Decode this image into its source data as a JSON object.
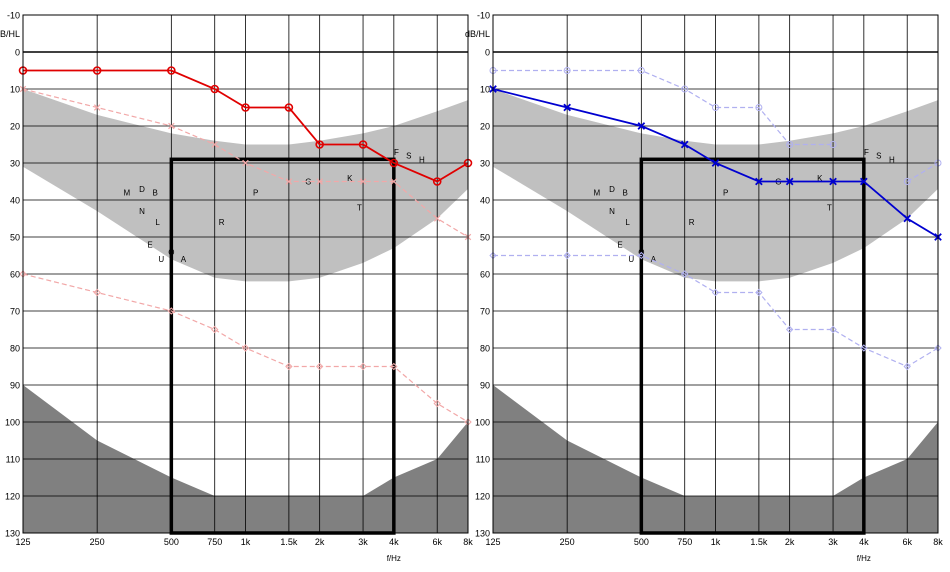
{
  "chart_data": [
    {
      "type": "line",
      "ylabel": "dB/HL",
      "xlabel": "f/Hz",
      "ylim": [
        -10,
        130
      ],
      "y_inverted": true,
      "x_scale": "log",
      "x_ticks": [
        125,
        250,
        500,
        750,
        1000,
        1500,
        2000,
        3000,
        4000,
        6000,
        8000
      ],
      "x_tick_labels": [
        "125",
        "250",
        "500",
        "750",
        "1k",
        "1.5k",
        "2k",
        "3k",
        "4k",
        "6k",
        "8k"
      ],
      "y_ticks": [
        -10,
        0,
        10,
        20,
        30,
        40,
        50,
        60,
        70,
        80,
        90,
        100,
        110,
        120,
        130
      ],
      "y_tick_labels": [
        "-10",
        "0",
        "10",
        "20",
        "30",
        "40",
        "50",
        "60",
        "70",
        "80",
        "90",
        "100",
        "110",
        "120",
        "130"
      ],
      "grid": true,
      "series": [
        {
          "role": "primary",
          "marker": "circle",
          "color": "#e00000",
          "x": [
            125,
            250,
            500,
            750,
            1000,
            1500,
            2000,
            3000,
            4000,
            6000,
            8000
          ],
          "y": [
            5,
            5,
            5,
            10,
            15,
            15,
            25,
            25,
            30,
            35,
            30
          ]
        },
        {
          "role": "faint",
          "marker": "x",
          "color": "#f2a8a8",
          "x": [
            125,
            250,
            500,
            750,
            1000,
            1500,
            2000,
            3000,
            4000,
            6000,
            8000
          ],
          "y": [
            10,
            15,
            20,
            25,
            30,
            35,
            35,
            35,
            35,
            45,
            50
          ]
        },
        {
          "role": "faint",
          "marker": "diamond",
          "color": "#f2a8a8",
          "x": [
            125,
            250,
            500,
            750,
            1000,
            1500,
            2000,
            3000,
            4000,
            6000,
            8000
          ],
          "y": [
            60,
            65,
            70,
            75,
            80,
            85,
            85,
            85,
            85,
            95,
            100
          ]
        }
      ],
      "speech_banana_upper": [
        [
          125,
          10
        ],
        [
          250,
          17
        ],
        [
          500,
          22
        ],
        [
          750,
          24
        ],
        [
          1000,
          25
        ],
        [
          1500,
          25
        ],
        [
          2000,
          24
        ],
        [
          3000,
          22
        ],
        [
          4000,
          20
        ],
        [
          6000,
          16
        ],
        [
          8000,
          13
        ]
      ],
      "speech_banana_lower": [
        [
          125,
          31
        ],
        [
          250,
          43
        ],
        [
          500,
          56
        ],
        [
          750,
          61
        ],
        [
          1000,
          62
        ],
        [
          1500,
          62
        ],
        [
          2000,
          61
        ],
        [
          3000,
          57
        ],
        [
          4000,
          53
        ],
        [
          6000,
          45
        ],
        [
          8000,
          37
        ]
      ],
      "bottom_region": [
        [
          125,
          90
        ],
        [
          250,
          105
        ],
        [
          500,
          115
        ],
        [
          750,
          120
        ],
        [
          1000,
          120
        ],
        [
          1500,
          120
        ],
        [
          2000,
          120
        ],
        [
          3000,
          120
        ],
        [
          4000,
          115
        ],
        [
          6000,
          110
        ],
        [
          8000,
          100
        ]
      ],
      "highlight_box": {
        "x": [
          500,
          4000
        ],
        "y": [
          29,
          130
        ]
      },
      "speech_letters": [
        {
          "label": "M",
          "x": 330,
          "y": 38
        },
        {
          "label": "D",
          "x": 380,
          "y": 37
        },
        {
          "label": "B",
          "x": 430,
          "y": 38
        },
        {
          "label": "N",
          "x": 380,
          "y": 43
        },
        {
          "label": "L",
          "x": 440,
          "y": 46
        },
        {
          "label": "E",
          "x": 410,
          "y": 52
        },
        {
          "label": "U",
          "x": 455,
          "y": 56
        },
        {
          "label": "O",
          "x": 500,
          "y": 54
        },
        {
          "label": "A",
          "x": 560,
          "y": 56
        },
        {
          "label": "R",
          "x": 800,
          "y": 46
        },
        {
          "label": "P",
          "x": 1100,
          "y": 38
        },
        {
          "label": "G",
          "x": 1800,
          "y": 35
        },
        {
          "label": "K",
          "x": 2650,
          "y": 34
        },
        {
          "label": "T",
          "x": 2900,
          "y": 42
        },
        {
          "label": "F",
          "x": 4100,
          "y": 27
        },
        {
          "label": "S",
          "x": 4600,
          "y": 28
        },
        {
          "label": "H",
          "x": 5200,
          "y": 29
        }
      ]
    },
    {
      "type": "line",
      "ylabel": "dB/HL",
      "xlabel": "f/Hz",
      "ylim": [
        -10,
        130
      ],
      "y_inverted": true,
      "x_scale": "log",
      "x_ticks": [
        125,
        250,
        500,
        750,
        1000,
        1500,
        2000,
        3000,
        4000,
        6000,
        8000
      ],
      "x_tick_labels": [
        "125",
        "250",
        "500",
        "750",
        "1k",
        "1.5k",
        "2k",
        "3k",
        "4k",
        "6k",
        "8k"
      ],
      "y_ticks": [
        -10,
        0,
        10,
        20,
        30,
        40,
        50,
        60,
        70,
        80,
        90,
        100,
        110,
        120,
        130
      ],
      "y_tick_labels": [
        "-10",
        "0",
        "10",
        "20",
        "30",
        "40",
        "50",
        "60",
        "70",
        "80",
        "90",
        "100",
        "110",
        "120",
        "130"
      ],
      "grid": true,
      "series": [
        {
          "role": "primary",
          "marker": "x",
          "color": "#0000d0",
          "x": [
            125,
            250,
            500,
            750,
            1000,
            1500,
            2000,
            3000,
            4000,
            6000,
            8000
          ],
          "y": [
            10,
            15,
            20,
            25,
            30,
            35,
            35,
            35,
            35,
            45,
            50
          ]
        },
        {
          "role": "faint",
          "marker": "circle",
          "color": "#b0b0f0",
          "x": [
            125,
            250,
            500,
            750,
            1000,
            1500,
            2000,
            3000
          ],
          "y": [
            5,
            5,
            5,
            10,
            15,
            15,
            25,
            25
          ]
        },
        {
          "role": "faint",
          "marker": "diamond",
          "color": "#b0b0f0",
          "x": [
            125,
            250,
            500,
            750,
            1000,
            1500,
            2000,
            3000,
            4000,
            6000,
            8000
          ],
          "y": [
            55,
            55,
            55,
            60,
            65,
            65,
            75,
            75,
            80,
            85,
            80
          ]
        },
        {
          "role": "faint",
          "marker": "circle",
          "color": "#b0b0f0",
          "x": [
            6000,
            8000
          ],
          "y": [
            35,
            30
          ]
        }
      ],
      "speech_banana_upper": [
        [
          125,
          10
        ],
        [
          250,
          17
        ],
        [
          500,
          22
        ],
        [
          750,
          24
        ],
        [
          1000,
          25
        ],
        [
          1500,
          25
        ],
        [
          2000,
          24
        ],
        [
          3000,
          22
        ],
        [
          4000,
          20
        ],
        [
          6000,
          16
        ],
        [
          8000,
          13
        ]
      ],
      "speech_banana_lower": [
        [
          125,
          31
        ],
        [
          250,
          43
        ],
        [
          500,
          56
        ],
        [
          750,
          61
        ],
        [
          1000,
          62
        ],
        [
          1500,
          62
        ],
        [
          2000,
          61
        ],
        [
          3000,
          57
        ],
        [
          4000,
          53
        ],
        [
          6000,
          45
        ],
        [
          8000,
          37
        ]
      ],
      "bottom_region": [
        [
          125,
          90
        ],
        [
          250,
          105
        ],
        [
          500,
          115
        ],
        [
          750,
          120
        ],
        [
          1000,
          120
        ],
        [
          1500,
          120
        ],
        [
          2000,
          120
        ],
        [
          3000,
          120
        ],
        [
          4000,
          115
        ],
        [
          6000,
          110
        ],
        [
          8000,
          100
        ]
      ],
      "highlight_box": {
        "x": [
          500,
          4000
        ],
        "y": [
          29,
          130
        ]
      },
      "speech_letters": [
        {
          "label": "M",
          "x": 330,
          "y": 38
        },
        {
          "label": "D",
          "x": 380,
          "y": 37
        },
        {
          "label": "B",
          "x": 430,
          "y": 38
        },
        {
          "label": "N",
          "x": 380,
          "y": 43
        },
        {
          "label": "L",
          "x": 440,
          "y": 46
        },
        {
          "label": "E",
          "x": 410,
          "y": 52
        },
        {
          "label": "U",
          "x": 455,
          "y": 56
        },
        {
          "label": "O",
          "x": 500,
          "y": 54
        },
        {
          "label": "A",
          "x": 560,
          "y": 56
        },
        {
          "label": "R",
          "x": 800,
          "y": 46
        },
        {
          "label": "P",
          "x": 1100,
          "y": 38
        },
        {
          "label": "G",
          "x": 1800,
          "y": 35
        },
        {
          "label": "K",
          "x": 2650,
          "y": 34
        },
        {
          "label": "T",
          "x": 2900,
          "y": 42
        },
        {
          "label": "F",
          "x": 4100,
          "y": 27
        },
        {
          "label": "S",
          "x": 4600,
          "y": 28
        },
        {
          "label": "H",
          "x": 5200,
          "y": 29
        }
      ]
    }
  ],
  "colors": {
    "banana": "#c0c0c0",
    "bottom_region": "#808080",
    "grid": "#000000",
    "highlight_box": "#000000"
  }
}
